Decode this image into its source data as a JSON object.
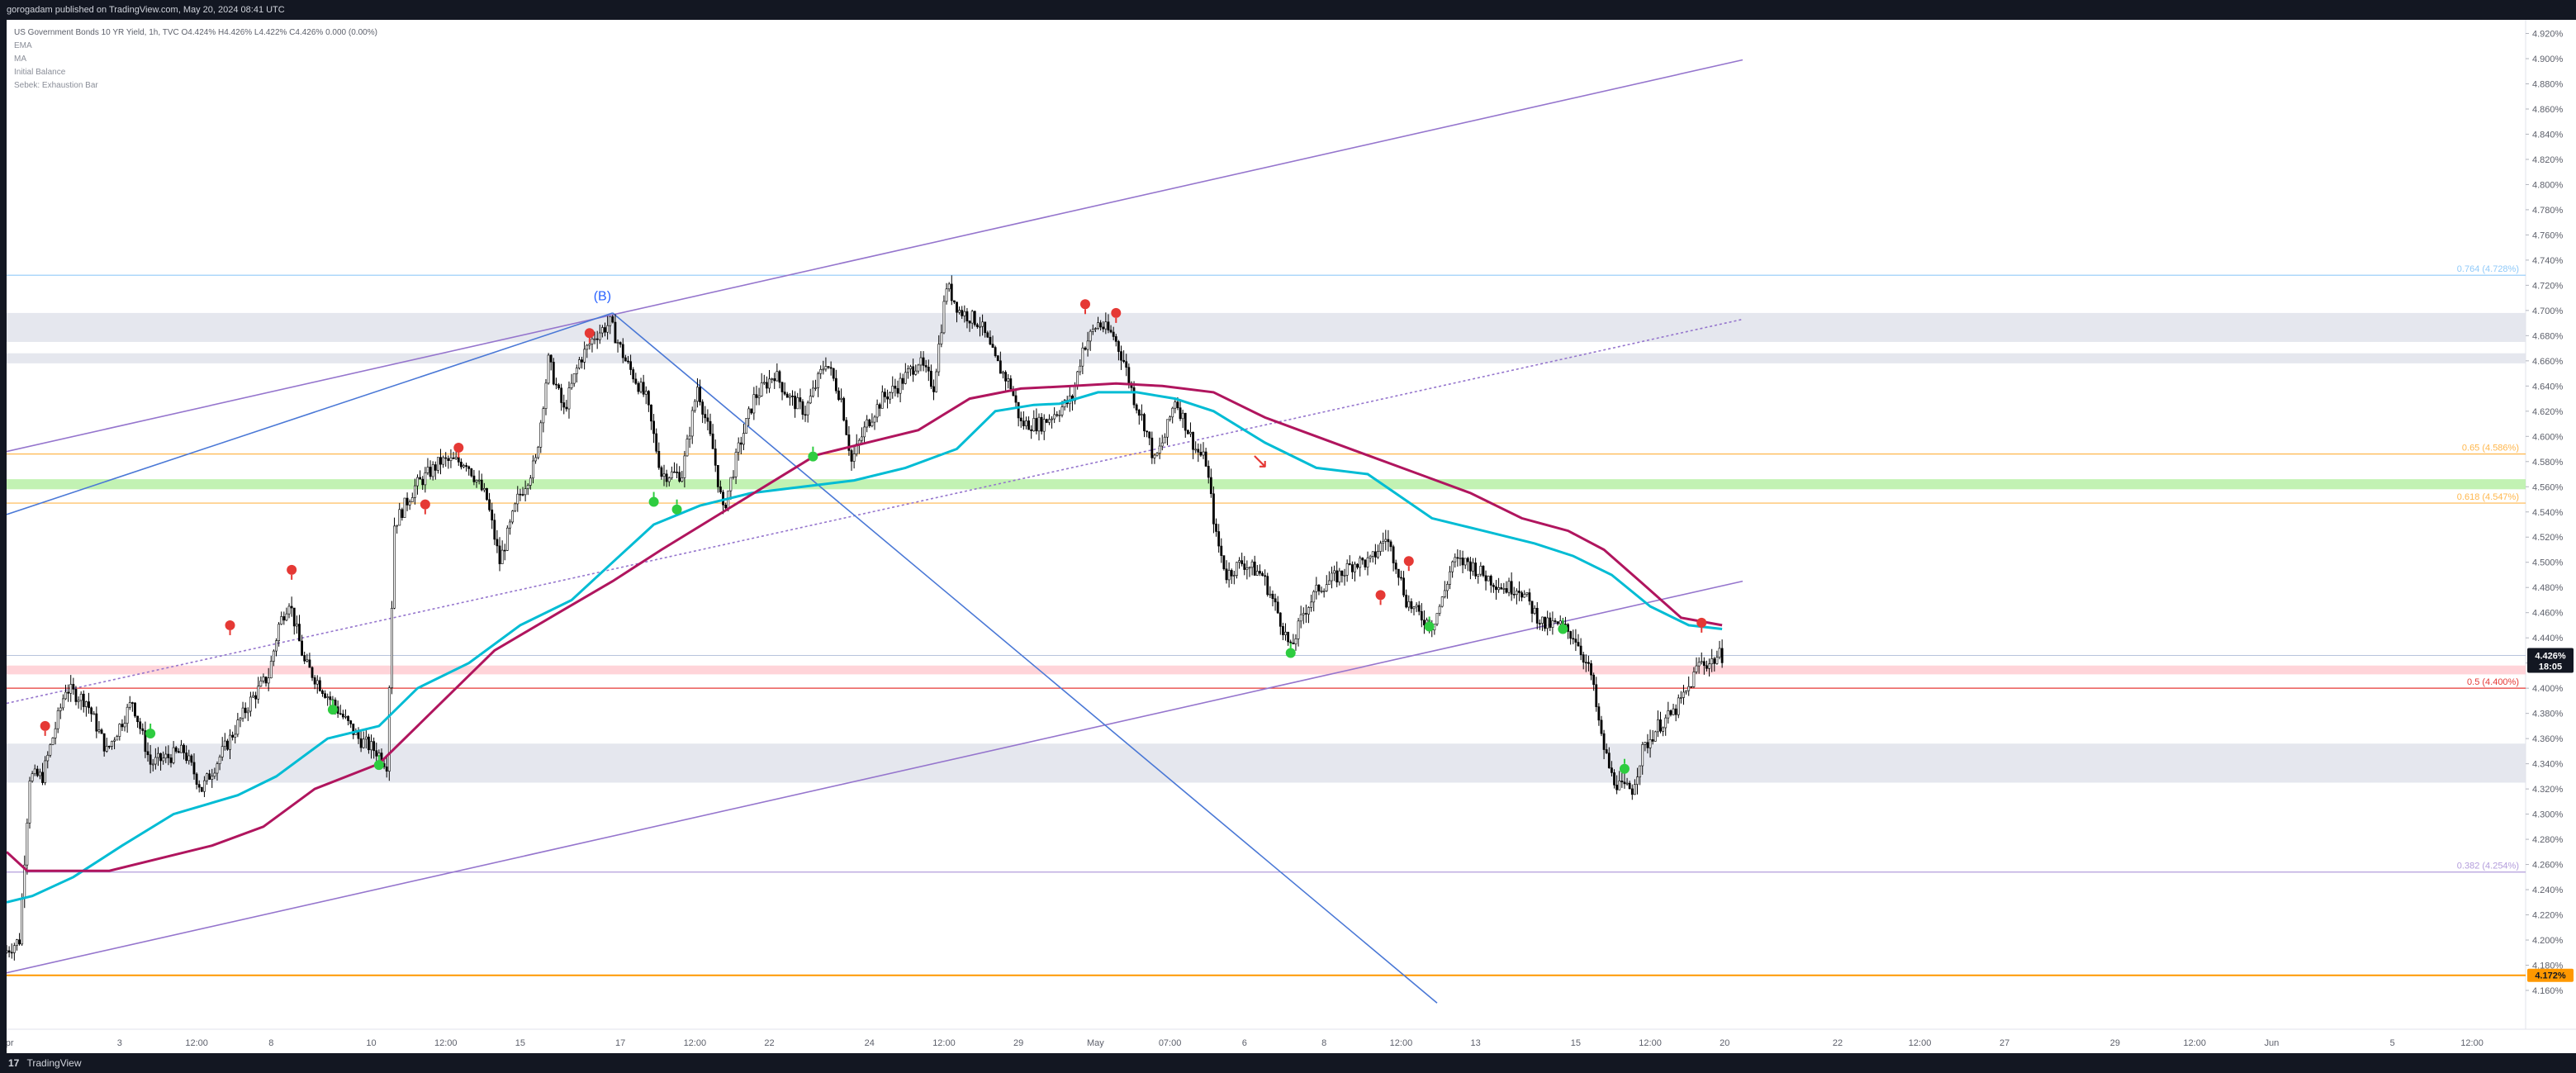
{
  "header": {
    "publisher": "gorogadam published on TradingView.com, May 20, 2024 08:41 UTC"
  },
  "legend": {
    "symbol_line": "US Government Bonds 10 YR Yield, 1h, TVC",
    "ohlc_line": "O4.424% H4.426% L4.422% C4.426% 0.000 (0.00%)",
    "indicators": [
      "EMA",
      "MA",
      "Initial Balance",
      "Sebek: Exhaustion Bar"
    ]
  },
  "footer": {
    "brand": "TradingView",
    "logo_glyph": "17"
  },
  "colors": {
    "background": "#ffffff",
    "frame": "#131722",
    "up_candle": "#ffffff",
    "down_candle": "#000000",
    "ema": "#00bcd4",
    "ma": "#b0155e",
    "channel": "#9575cd",
    "trendline_blue": "#4a78d6",
    "support_red": "#e53935",
    "zone_gray": "#e0e3eb",
    "zone_green": "#b7f0a6",
    "fib_orange": "#ffb74d",
    "fib_purple": "#b39ddb",
    "fib_blue": "#90caf9",
    "exhaust_red": "#e53935",
    "exhaust_green": "#2ecc40",
    "bottom_line": "#ff9800"
  },
  "chart_data": {
    "type": "candlestick",
    "symbol": "US Government Bonds 10 YR Yield",
    "timeframe": "1h",
    "y_unit": "%",
    "ylim": [
      4.15,
      4.93
    ],
    "y_ticks": [
      "4.920%",
      "4.900%",
      "4.880%",
      "4.860%",
      "4.840%",
      "4.820%",
      "4.800%",
      "4.780%",
      "4.760%",
      "4.740%",
      "4.720%",
      "4.700%",
      "4.680%",
      "4.660%",
      "4.640%",
      "4.620%",
      "4.600%",
      "4.580%",
      "4.560%",
      "4.540%",
      "4.520%",
      "4.500%",
      "4.480%",
      "4.460%",
      "4.440%",
      "4.420%",
      "4.400%",
      "4.380%",
      "4.360%",
      "4.340%",
      "4.320%",
      "4.300%",
      "4.280%",
      "4.260%",
      "4.240%",
      "4.220%",
      "4.200%",
      "4.180%",
      "4.160%"
    ],
    "x_ticks": [
      {
        "label": "Apr",
        "t": 0
      },
      {
        "label": "3",
        "t": 44
      },
      {
        "label": "12:00",
        "t": 74
      },
      {
        "label": "8",
        "t": 103
      },
      {
        "label": "10",
        "t": 142
      },
      {
        "label": "12:00",
        "t": 171
      },
      {
        "label": "15",
        "t": 200
      },
      {
        "label": "17",
        "t": 239
      },
      {
        "label": "12:00",
        "t": 268
      },
      {
        "label": "22",
        "t": 297
      },
      {
        "label": "24",
        "t": 336
      },
      {
        "label": "12:00",
        "t": 365
      },
      {
        "label": "29",
        "t": 394
      },
      {
        "label": "May",
        "t": 424
      },
      {
        "label": "07:00",
        "t": 453
      },
      {
        "label": "6",
        "t": 482
      },
      {
        "label": "8",
        "t": 513
      },
      {
        "label": "12:00",
        "t": 543
      },
      {
        "label": "13",
        "t": 572
      },
      {
        "label": "15",
        "t": 611
      },
      {
        "label": "12:00",
        "t": 640
      },
      {
        "label": "20",
        "t": 669
      },
      {
        "label": "22",
        "t": 713
      },
      {
        "label": "12:00",
        "t": 745
      },
      {
        "label": "27",
        "t": 778
      },
      {
        "label": "29",
        "t": 821
      },
      {
        "label": "12:00",
        "t": 852
      },
      {
        "label": "Jun",
        "t": 882
      },
      {
        "label": "5",
        "t": 929
      },
      {
        "label": "12:00",
        "t": 960
      }
    ],
    "price_path": [
      [
        0,
        4.19
      ],
      [
        6,
        4.2
      ],
      [
        10,
        4.33
      ],
      [
        15,
        4.33
      ],
      [
        24,
        4.4
      ],
      [
        32,
        4.39
      ],
      [
        40,
        4.35
      ],
      [
        50,
        4.39
      ],
      [
        57,
        4.34
      ],
      [
        70,
        4.35
      ],
      [
        77,
        4.32
      ],
      [
        88,
        4.36
      ],
      [
        96,
        4.39
      ],
      [
        103,
        4.41
      ],
      [
        107,
        4.45
      ],
      [
        111,
        4.47
      ],
      [
        117,
        4.42
      ],
      [
        124,
        4.4
      ],
      [
        131,
        4.38
      ],
      [
        138,
        4.36
      ],
      [
        145,
        4.35
      ],
      [
        149,
        4.34
      ],
      [
        152,
        4.53
      ],
      [
        160,
        4.56
      ],
      [
        170,
        4.58
      ],
      [
        180,
        4.58
      ],
      [
        188,
        4.55
      ],
      [
        193,
        4.5
      ],
      [
        200,
        4.55
      ],
      [
        207,
        4.58
      ],
      [
        212,
        4.66
      ],
      [
        218,
        4.62
      ],
      [
        224,
        4.66
      ],
      [
        230,
        4.68
      ],
      [
        236,
        4.69
      ],
      [
        242,
        4.66
      ],
      [
        250,
        4.63
      ],
      [
        256,
        4.57
      ],
      [
        264,
        4.57
      ],
      [
        270,
        4.64
      ],
      [
        276,
        4.59
      ],
      [
        280,
        4.54
      ],
      [
        286,
        4.59
      ],
      [
        292,
        4.63
      ],
      [
        300,
        4.65
      ],
      [
        306,
        4.63
      ],
      [
        312,
        4.62
      ],
      [
        320,
        4.66
      ],
      [
        326,
        4.63
      ],
      [
        330,
        4.58
      ],
      [
        336,
        4.61
      ],
      [
        342,
        4.63
      ],
      [
        348,
        4.64
      ],
      [
        356,
        4.66
      ],
      [
        362,
        4.64
      ],
      [
        367,
        4.72
      ],
      [
        372,
        4.7
      ],
      [
        380,
        4.69
      ],
      [
        386,
        4.66
      ],
      [
        392,
        4.64
      ],
      [
        396,
        4.61
      ],
      [
        404,
        4.61
      ],
      [
        410,
        4.62
      ],
      [
        416,
        4.63
      ],
      [
        420,
        4.67
      ],
      [
        426,
        4.69
      ],
      [
        432,
        4.68
      ],
      [
        436,
        4.66
      ],
      [
        440,
        4.63
      ],
      [
        444,
        4.61
      ],
      [
        448,
        4.58
      ],
      [
        452,
        4.6
      ],
      [
        456,
        4.63
      ],
      [
        460,
        4.61
      ],
      [
        464,
        4.59
      ],
      [
        468,
        4.58
      ],
      [
        472,
        4.52
      ],
      [
        476,
        4.49
      ],
      [
        482,
        4.5
      ],
      [
        490,
        4.49
      ],
      [
        496,
        4.46
      ],
      [
        501,
        4.43
      ],
      [
        506,
        4.46
      ],
      [
        512,
        4.48
      ],
      [
        520,
        4.49
      ],
      [
        526,
        4.5
      ],
      [
        532,
        4.5
      ],
      [
        538,
        4.52
      ],
      [
        542,
        4.5
      ],
      [
        546,
        4.47
      ],
      [
        550,
        4.46
      ],
      [
        556,
        4.45
      ],
      [
        560,
        4.47
      ],
      [
        564,
        4.5
      ],
      [
        570,
        4.5
      ],
      [
        576,
        4.49
      ],
      [
        584,
        4.48
      ],
      [
        590,
        4.48
      ],
      [
        596,
        4.46
      ],
      [
        600,
        4.45
      ],
      [
        606,
        4.45
      ],
      [
        612,
        4.44
      ],
      [
        618,
        4.41
      ],
      [
        622,
        4.36
      ],
      [
        626,
        4.33
      ],
      [
        630,
        4.32
      ],
      [
        634,
        4.32
      ],
      [
        638,
        4.35
      ],
      [
        644,
        4.37
      ],
      [
        650,
        4.38
      ],
      [
        656,
        4.4
      ],
      [
        660,
        4.42
      ],
      [
        664,
        4.42
      ],
      [
        668,
        4.426
      ]
    ],
    "series": [
      {
        "name": "EMA",
        "points": [
          [
            0,
            4.23
          ],
          [
            10,
            4.235
          ],
          [
            26,
            4.25
          ],
          [
            45,
            4.275
          ],
          [
            65,
            4.3
          ],
          [
            90,
            4.315
          ],
          [
            105,
            4.33
          ],
          [
            125,
            4.36
          ],
          [
            145,
            4.37
          ],
          [
            160,
            4.4
          ],
          [
            180,
            4.42
          ],
          [
            200,
            4.45
          ],
          [
            220,
            4.47
          ],
          [
            236,
            4.5
          ],
          [
            252,
            4.53
          ],
          [
            270,
            4.545
          ],
          [
            290,
            4.555
          ],
          [
            310,
            4.56
          ],
          [
            330,
            4.565
          ],
          [
            350,
            4.575
          ],
          [
            370,
            4.59
          ],
          [
            385,
            4.62
          ],
          [
            400,
            4.625
          ],
          [
            410,
            4.626
          ],
          [
            425,
            4.635
          ],
          [
            440,
            4.635
          ],
          [
            455,
            4.63
          ],
          [
            470,
            4.62
          ],
          [
            490,
            4.595
          ],
          [
            510,
            4.575
          ],
          [
            530,
            4.57
          ],
          [
            555,
            4.535
          ],
          [
            575,
            4.525
          ],
          [
            595,
            4.515
          ],
          [
            610,
            4.505
          ],
          [
            625,
            4.49
          ],
          [
            640,
            4.465
          ],
          [
            655,
            4.45
          ],
          [
            668,
            4.447
          ]
        ]
      },
      {
        "name": "MA",
        "points": [
          [
            0,
            4.27
          ],
          [
            8,
            4.255
          ],
          [
            20,
            4.255
          ],
          [
            40,
            4.255
          ],
          [
            60,
            4.265
          ],
          [
            80,
            4.275
          ],
          [
            100,
            4.29
          ],
          [
            120,
            4.32
          ],
          [
            145,
            4.34
          ],
          [
            165,
            4.38
          ],
          [
            190,
            4.43
          ],
          [
            215,
            4.46
          ],
          [
            236,
            4.485
          ],
          [
            255,
            4.51
          ],
          [
            275,
            4.535
          ],
          [
            295,
            4.56
          ],
          [
            315,
            4.585
          ],
          [
            335,
            4.595
          ],
          [
            355,
            4.605
          ],
          [
            375,
            4.63
          ],
          [
            395,
            4.638
          ],
          [
            415,
            4.64
          ],
          [
            432,
            4.642
          ],
          [
            450,
            4.64
          ],
          [
            470,
            4.635
          ],
          [
            490,
            4.615
          ],
          [
            510,
            4.6
          ],
          [
            530,
            4.585
          ],
          [
            550,
            4.57
          ],
          [
            570,
            4.555
          ],
          [
            590,
            4.535
          ],
          [
            608,
            4.525
          ],
          [
            622,
            4.51
          ],
          [
            636,
            4.485
          ],
          [
            652,
            4.456
          ],
          [
            668,
            4.45
          ]
        ]
      }
    ],
    "exhaustion_bars": {
      "red": [
        [
          15,
          4.37
        ],
        [
          87,
          4.45
        ],
        [
          111,
          4.494
        ],
        [
          163,
          4.546
        ],
        [
          176,
          4.591
        ],
        [
          227,
          4.682
        ],
        [
          420,
          4.705
        ],
        [
          432,
          4.698
        ],
        [
          535,
          4.474
        ],
        [
          546,
          4.501
        ],
        [
          660,
          4.452
        ]
      ],
      "green": [
        [
          56,
          4.364
        ],
        [
          127,
          4.383
        ],
        [
          145,
          4.339
        ],
        [
          252,
          4.548
        ],
        [
          261,
          4.542
        ],
        [
          314,
          4.584
        ],
        [
          500,
          4.428
        ],
        [
          554,
          4.449
        ],
        [
          606,
          4.447
        ],
        [
          630,
          4.336
        ]
      ]
    },
    "annotations": [
      {
        "text": "(B)",
        "t": 232,
        "y": 4.708,
        "color": "#2962ff"
      },
      {
        "text": "↘",
        "t": 488,
        "y": 4.575,
        "color": "#e53935"
      }
    ],
    "levels": [
      {
        "label": "0.764 (4.728%)",
        "value": 4.728,
        "color": "#90caf9"
      },
      {
        "label": "0.65 (4.586%)",
        "value": 4.586,
        "color": "#ffb74d"
      },
      {
        "label": "0.618 (4.547%)",
        "value": 4.547,
        "color": "#ffb74d"
      },
      {
        "label": "0.5 (4.400%)",
        "value": 4.4,
        "color": "#e53935"
      },
      {
        "label": "0.382 (4.254%)",
        "value": 4.254,
        "color": "#b39ddb"
      }
    ],
    "level_plain": [
      {
        "value": 4.426,
        "color": "#b8c4dc"
      },
      {
        "value": 4.172,
        "color": "#ff9800"
      }
    ],
    "zones": [
      {
        "from": 4.675,
        "to": 4.698,
        "color": "#e0e3eb"
      },
      {
        "from": 4.658,
        "to": 4.666,
        "color": "#e0e3eb"
      },
      {
        "from": 4.325,
        "to": 4.356,
        "color": "#e0e3eb"
      },
      {
        "from": 4.558,
        "to": 4.566,
        "color": "#b7f0a6"
      },
      {
        "from": 4.411,
        "to": 4.418,
        "color": "#ffcdd2"
      }
    ],
    "trendlines": [
      {
        "points": [
          [
            0,
            4.588
          ],
          [
            676,
            4.899
          ]
        ],
        "color": "#9575cd",
        "style": "solid"
      },
      {
        "points": [
          [
            0,
            4.388
          ],
          [
            676,
            4.693
          ]
        ],
        "color": "#9575cd",
        "style": "dotted"
      },
      {
        "points": [
          [
            0,
            4.174
          ],
          [
            676,
            4.485
          ]
        ],
        "color": "#9575cd",
        "style": "solid"
      },
      {
        "points": [
          [
            0,
            4.538
          ],
          [
            236,
            4.698
          ]
        ],
        "color": "#4a78d6",
        "style": "solid"
      },
      {
        "points": [
          [
            236,
            4.698
          ],
          [
            557,
            4.15
          ]
        ],
        "color": "#4a78d6",
        "style": "solid"
      }
    ],
    "last_price": {
      "value": "4.426%",
      "countdown": "18:05",
      "y": 4.426
    },
    "bottom_tag": {
      "value": "4.172%",
      "y": 4.172
    }
  }
}
